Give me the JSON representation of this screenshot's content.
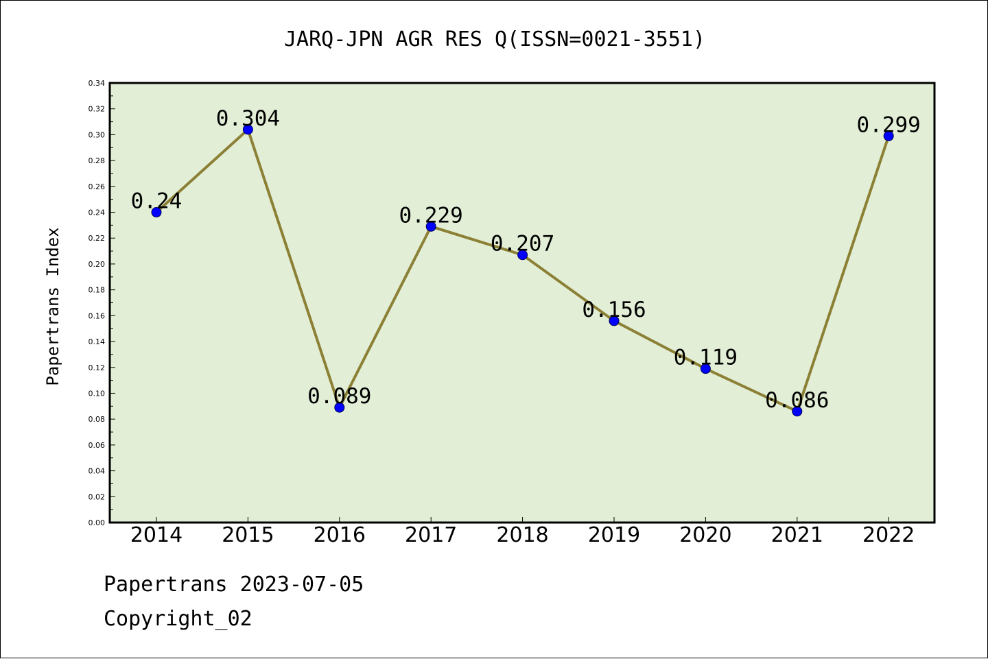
{
  "chart_data": {
    "type": "line",
    "title": "JARQ-JPN AGR RES Q(ISSN=0021-3551)",
    "ylabel": "Papertrans Index",
    "xlabel": "",
    "x": [
      "2014",
      "2015",
      "2016",
      "2017",
      "2018",
      "2019",
      "2020",
      "2021",
      "2022"
    ],
    "values": [
      0.24,
      0.304,
      0.089,
      0.229,
      0.207,
      0.156,
      0.119,
      0.086,
      0.299
    ],
    "data_labels": [
      "0.24",
      "0.304",
      "0.089",
      "0.229",
      "0.207",
      "0.156",
      "0.119",
      "0.086",
      "0.299"
    ],
    "ylim": [
      0,
      0.34
    ],
    "yticks": [
      "0.00",
      "0.02",
      "0.04",
      "0.06",
      "0.08",
      "0.10",
      "0.12",
      "0.14",
      "0.16",
      "0.18",
      "0.20",
      "0.22",
      "0.24",
      "0.26",
      "0.28",
      "0.30",
      "0.32",
      "0.34"
    ],
    "grid": false,
    "colors": {
      "plot_background": "#e2efd6",
      "line": "#8b8035",
      "marker": "#0000ff"
    }
  },
  "footer": {
    "line1": "Papertrans 2023-07-05",
    "line2": "Copyright_02"
  }
}
